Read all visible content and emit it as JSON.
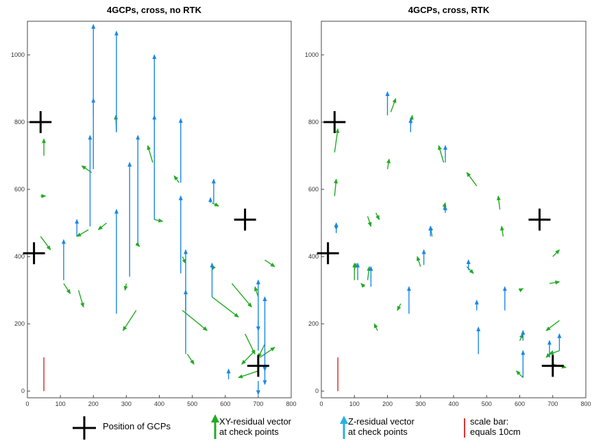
{
  "colors": {
    "xy": "#22aa22",
    "z": "#1a86e8",
    "gcp": "#000000",
    "scale": "#e03030"
  },
  "legend": {
    "gcp_label": "Position of GCPs",
    "xy_label_1": "XY-residual vector",
    "xy_label_2": "at check points",
    "z_label_1": "Z-residual vector",
    "z_label_2": "at check points",
    "scale_label_1": "scale bar:",
    "scale_label_2": "equals 10cm"
  },
  "chart_data": [
    {
      "type": "scatter",
      "title": "4GCPs, cross, no RTK",
      "xlim": [
        0,
        800
      ],
      "ylim": [
        -20,
        1100
      ],
      "xticks": [
        0,
        100,
        200,
        300,
        400,
        500,
        600,
        700,
        800
      ],
      "yticks": [
        0,
        200,
        400,
        600,
        800,
        1000
      ],
      "gcps": [
        [
          40,
          800
        ],
        [
          20,
          410
        ],
        [
          660,
          510
        ],
        [
          700,
          75
        ]
      ],
      "scale_bar": {
        "x": 50,
        "y0": 0,
        "y1": 100
      },
      "xy_vectors": [
        [
          50,
          700,
          50,
          750
        ],
        [
          40,
          580,
          55,
          580
        ],
        [
          40,
          460,
          70,
          420
        ],
        [
          110,
          320,
          130,
          290
        ],
        [
          155,
          300,
          170,
          250
        ],
        [
          185,
          480,
          150,
          460
        ],
        [
          195,
          650,
          165,
          670
        ],
        [
          240,
          500,
          215,
          480
        ],
        [
          270,
          770,
          268,
          820
        ],
        [
          300,
          320,
          296,
          300
        ],
        [
          330,
          440,
          340,
          430
        ],
        [
          380,
          680,
          365,
          730
        ],
        [
          385,
          510,
          410,
          505
        ],
        [
          460,
          620,
          445,
          640
        ],
        [
          470,
          400,
          480,
          380
        ],
        [
          560,
          560,
          580,
          550
        ],
        [
          565,
          370,
          560,
          360
        ],
        [
          560,
          280,
          640,
          220
        ],
        [
          330,
          240,
          290,
          180
        ],
        [
          470,
          240,
          545,
          180
        ],
        [
          485,
          110,
          505,
          80
        ],
        [
          620,
          320,
          680,
          250
        ],
        [
          720,
          390,
          750,
          370
        ],
        [
          700,
          280,
          690,
          310
        ],
        [
          660,
          170,
          690,
          110
        ],
        [
          690,
          120,
          650,
          80
        ],
        [
          700,
          60,
          640,
          40
        ],
        [
          720,
          140,
          700,
          100
        ],
        [
          705,
          100,
          750,
          130
        ]
      ],
      "z_vectors": [
        [
          110,
          330,
          110,
          450
        ],
        [
          150,
          460,
          150,
          510
        ],
        [
          190,
          490,
          190,
          760
        ],
        [
          200,
          660,
          200,
          1090
        ],
        [
          200,
          820,
          200,
          870
        ],
        [
          270,
          770,
          270,
          1070
        ],
        [
          270,
          230,
          270,
          540
        ],
        [
          310,
          340,
          310,
          680
        ],
        [
          335,
          440,
          335,
          760
        ],
        [
          385,
          510,
          385,
          820
        ],
        [
          385,
          800,
          385,
          1000
        ],
        [
          465,
          620,
          465,
          810
        ],
        [
          465,
          350,
          465,
          580
        ],
        [
          480,
          240,
          480,
          420
        ],
        [
          480,
          110,
          480,
          300
        ],
        [
          555,
          560,
          555,
          575
        ],
        [
          565,
          560,
          565,
          630
        ],
        [
          560,
          280,
          560,
          380
        ],
        [
          610,
          35,
          610,
          65
        ],
        [
          700,
          120,
          700,
          330
        ],
        [
          720,
          210,
          720,
          280
        ],
        [
          720,
          210,
          720,
          60
        ],
        [
          700,
          210,
          700,
          180
        ],
        [
          720,
          60,
          720,
          20
        ],
        [
          700,
          30,
          700,
          -10
        ]
      ]
    },
    {
      "type": "scatter",
      "title": "4GCPs, cross, RTK",
      "xlim": [
        0,
        800
      ],
      "ylim": [
        -20,
        1100
      ],
      "xticks": [
        0,
        100,
        200,
        300,
        400,
        500,
        600,
        700,
        800
      ],
      "yticks": [
        0,
        200,
        400,
        600,
        800,
        1000
      ],
      "gcps": [
        [
          40,
          800
        ],
        [
          20,
          410
        ],
        [
          660,
          510
        ],
        [
          700,
          75
        ]
      ],
      "scale_bar": {
        "x": 50,
        "y0": 0,
        "y1": 100
      },
      "xy_vectors": [
        [
          40,
          710,
          50,
          780
        ],
        [
          40,
          580,
          45,
          630
        ],
        [
          45,
          490,
          45,
          480
        ],
        [
          100,
          360,
          105,
          380
        ],
        [
          140,
          520,
          150,
          490
        ],
        [
          165,
          530,
          175,
          510
        ],
        [
          200,
          660,
          205,
          690
        ],
        [
          210,
          830,
          225,
          870
        ],
        [
          270,
          790,
          275,
          820
        ],
        [
          300,
          370,
          290,
          400
        ],
        [
          335,
          460,
          330,
          490
        ],
        [
          370,
          680,
          355,
          730
        ],
        [
          370,
          540,
          375,
          560
        ],
        [
          440,
          370,
          460,
          350
        ],
        [
          470,
          610,
          440,
          650
        ],
        [
          540,
          540,
          535,
          580
        ],
        [
          550,
          460,
          545,
          490
        ],
        [
          600,
          300,
          610,
          305
        ],
        [
          690,
          320,
          720,
          325
        ],
        [
          700,
          400,
          720,
          420
        ],
        [
          720,
          210,
          680,
          180
        ],
        [
          700,
          120,
          680,
          100
        ],
        [
          720,
          120,
          690,
          110
        ],
        [
          700,
          80,
          740,
          70
        ],
        [
          610,
          40,
          590,
          60
        ],
        [
          600,
          150,
          610,
          170
        ],
        [
          240,
          260,
          230,
          240
        ],
        [
          130,
          310,
          120,
          320
        ],
        [
          170,
          180,
          160,
          200
        ],
        [
          140,
          330,
          145,
          370
        ],
        [
          100,
          330,
          100,
          380
        ]
      ],
      "z_vectors": [
        [
          45,
          470,
          45,
          500
        ],
        [
          110,
          330,
          110,
          380
        ],
        [
          150,
          310,
          150,
          370
        ],
        [
          200,
          820,
          200,
          890
        ],
        [
          265,
          230,
          265,
          310
        ],
        [
          270,
          770,
          270,
          810
        ],
        [
          310,
          375,
          310,
          420
        ],
        [
          330,
          460,
          330,
          490
        ],
        [
          375,
          680,
          375,
          730
        ],
        [
          375,
          530,
          375,
          550
        ],
        [
          445,
          360,
          445,
          390
        ],
        [
          470,
          240,
          470,
          270
        ],
        [
          475,
          110,
          475,
          190
        ],
        [
          555,
          240,
          555,
          310
        ],
        [
          610,
          40,
          610,
          120
        ],
        [
          610,
          150,
          610,
          180
        ],
        [
          690,
          100,
          690,
          150
        ],
        [
          720,
          120,
          720,
          170
        ]
      ]
    }
  ]
}
